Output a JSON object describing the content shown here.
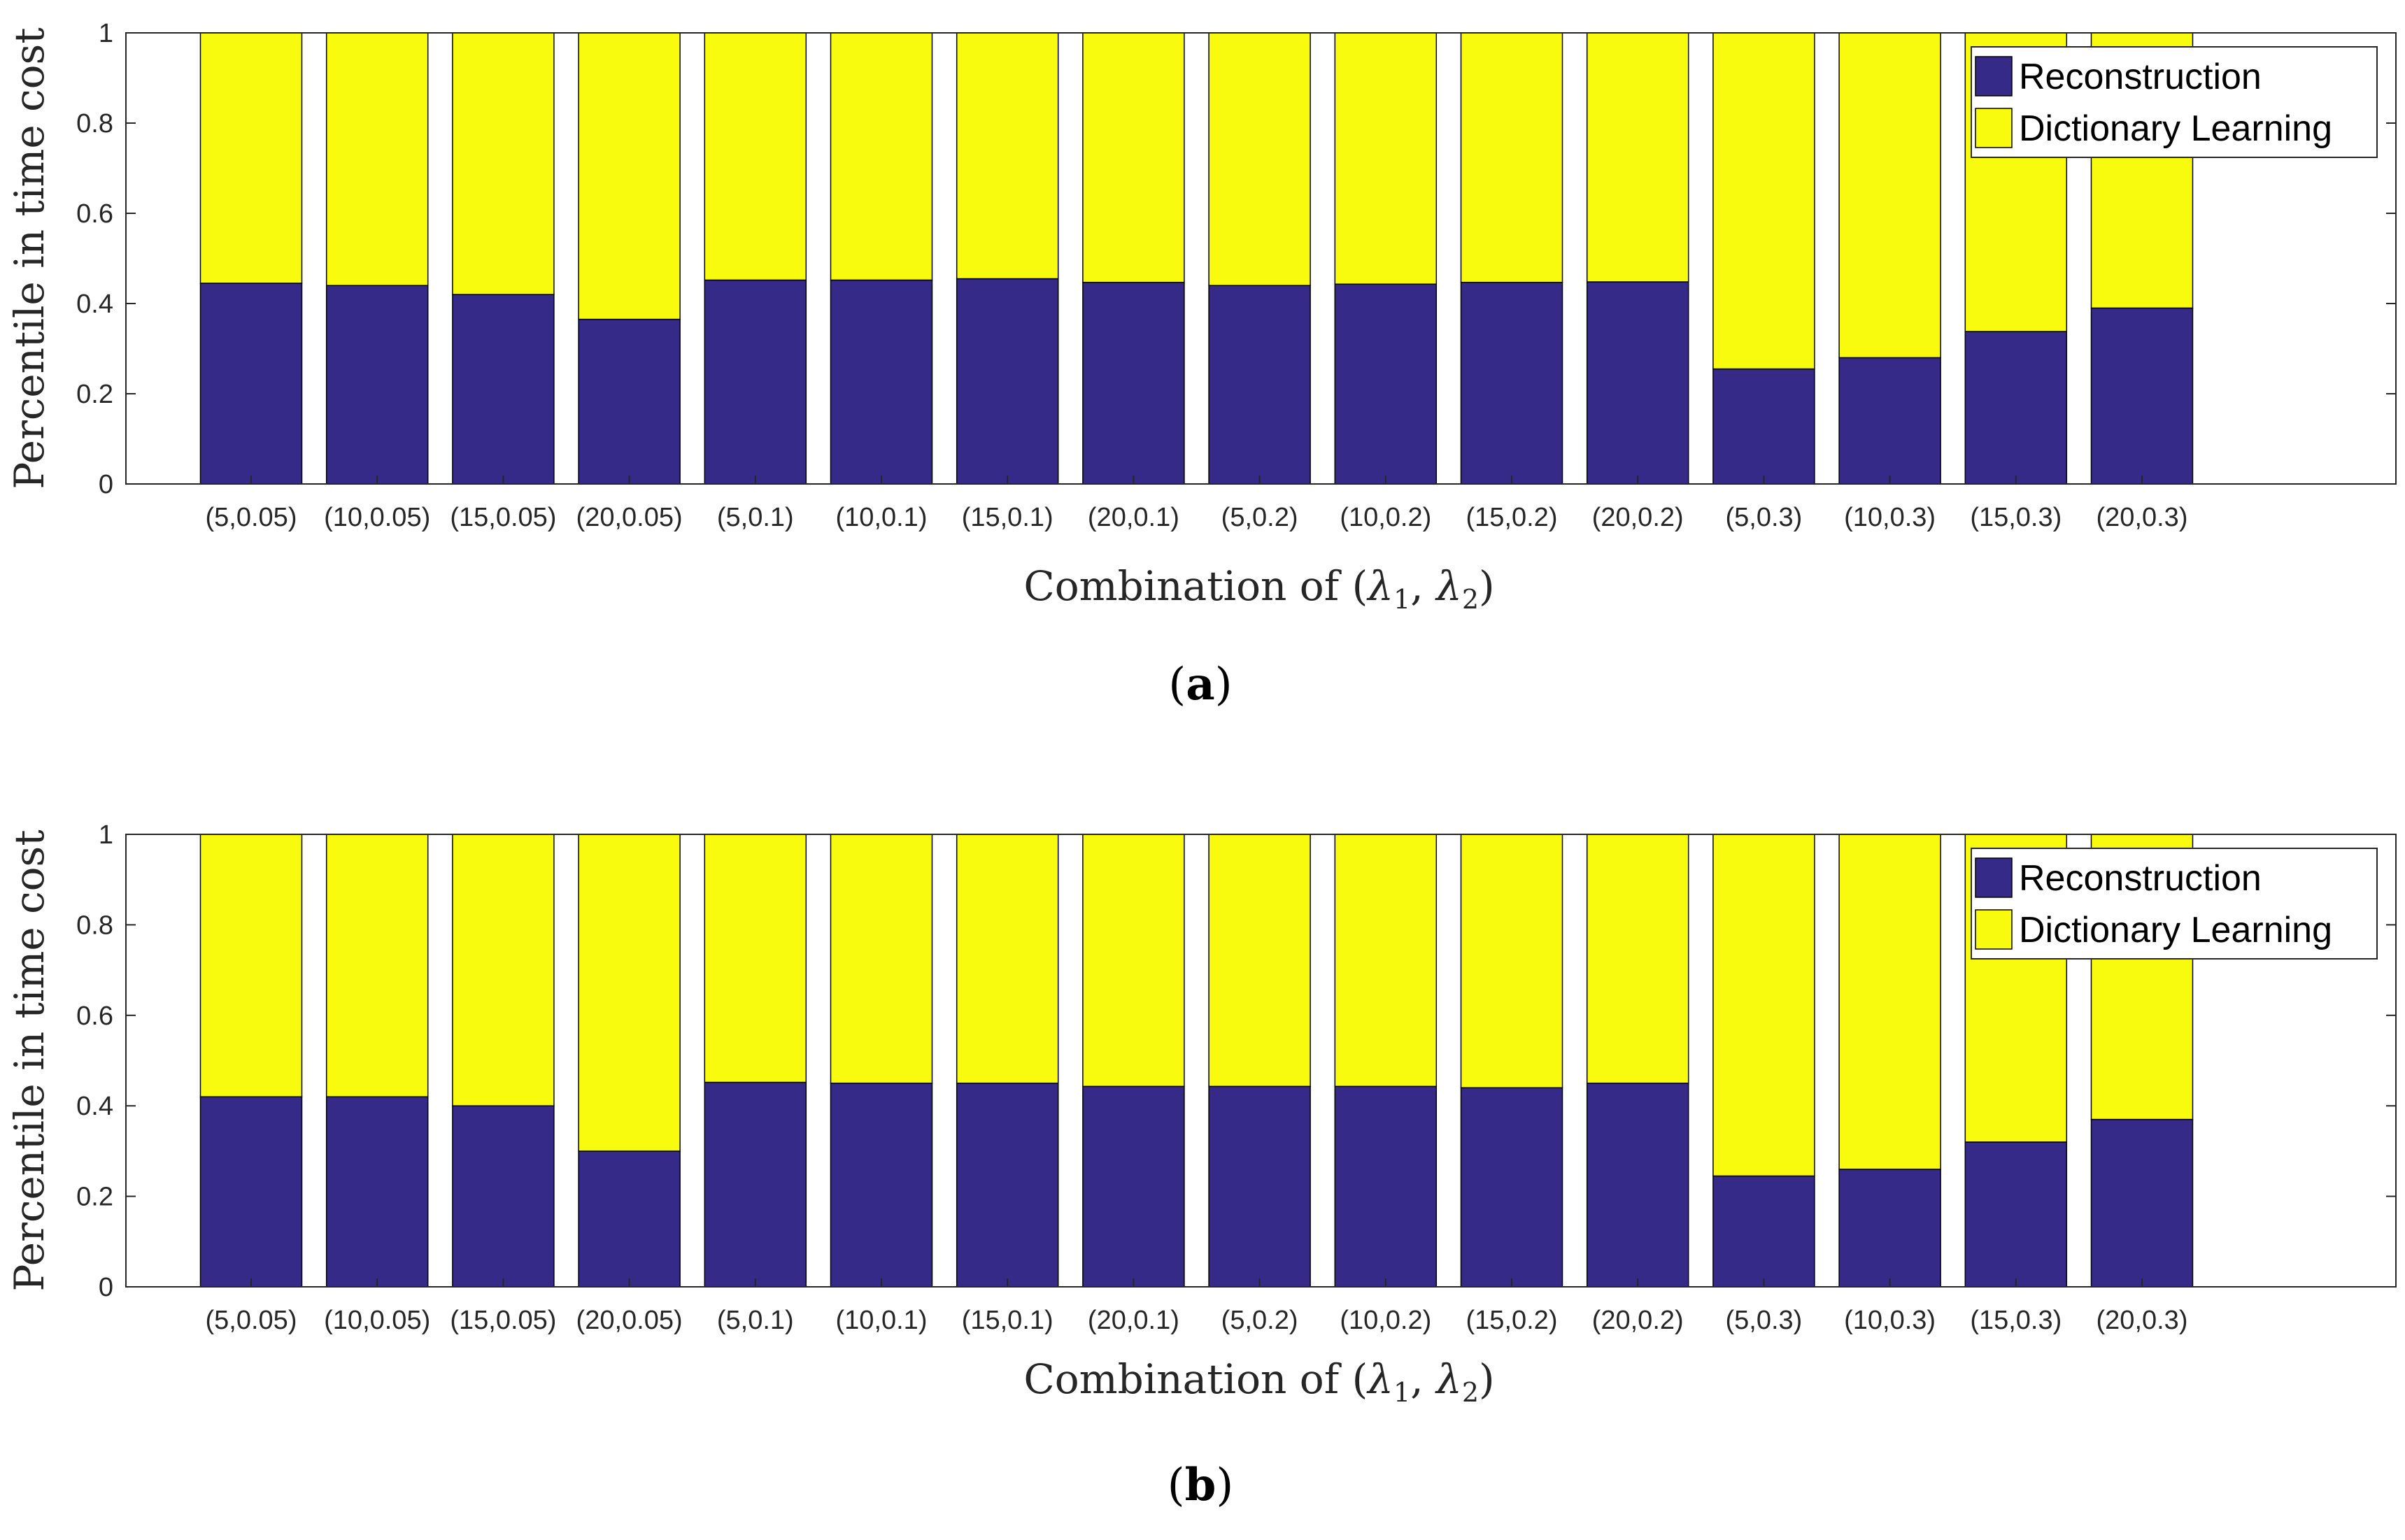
{
  "chart_data": [
    {
      "type": "bar",
      "stacked": true,
      "panel_label_open": "(",
      "panel_label_letter": "a",
      "panel_label_close": ")",
      "categories": [
        "(5,0.05)",
        "(10,0.05)",
        "(15,0.05)",
        "(20,0.05)",
        "(5,0.1)",
        "(10,0.1)",
        "(15,0.1)",
        "(20,0.1)",
        "(5,0.2)",
        "(10,0.2)",
        "(15,0.2)",
        "(20,0.2)",
        "(5,0.3)",
        "(10,0.3)",
        "(15,0.3)",
        "(20,0.3)"
      ],
      "series": [
        {
          "name": "Reconstruction",
          "color": "#352a87",
          "values": [
            0.445,
            0.44,
            0.42,
            0.365,
            0.452,
            0.452,
            0.455,
            0.447,
            0.44,
            0.443,
            0.447,
            0.448,
            0.255,
            0.28,
            0.338,
            0.39
          ]
        },
        {
          "name": "Dictionary Learning",
          "color": "#f9fb0e",
          "values": [
            0.555,
            0.56,
            0.58,
            0.635,
            0.548,
            0.548,
            0.545,
            0.553,
            0.56,
            0.557,
            0.553,
            0.552,
            0.745,
            0.72,
            0.662,
            0.61
          ]
        }
      ],
      "ylabel": "Percentile in time cost",
      "xlabel_prefix": "Combination of (",
      "xlabel_lambda1": "λ",
      "xlabel_sub1": "1",
      "xlabel_sep": ", ",
      "xlabel_lambda2": "λ",
      "xlabel_sub2": "2",
      "xlabel_suffix": ")",
      "ylim": [
        0,
        1
      ],
      "yticks": [
        "0",
        "0.2",
        "0.4",
        "0.6",
        "0.8",
        "1"
      ],
      "legend_position": "top-right"
    },
    {
      "type": "bar",
      "stacked": true,
      "panel_label_open": "(",
      "panel_label_letter": "b",
      "panel_label_close": ")",
      "categories": [
        "(5,0.05)",
        "(10,0.05)",
        "(15,0.05)",
        "(20,0.05)",
        "(5,0.1)",
        "(10,0.1)",
        "(15,0.1)",
        "(20,0.1)",
        "(5,0.2)",
        "(10,0.2)",
        "(15,0.2)",
        "(20,0.2)",
        "(5,0.3)",
        "(10,0.3)",
        "(15,0.3)",
        "(20,0.3)"
      ],
      "series": [
        {
          "name": "Reconstruction",
          "color": "#352a87",
          "values": [
            0.42,
            0.42,
            0.4,
            0.3,
            0.452,
            0.45,
            0.45,
            0.443,
            0.443,
            0.443,
            0.44,
            0.45,
            0.245,
            0.26,
            0.32,
            0.37
          ]
        },
        {
          "name": "Dictionary Learning",
          "color": "#f9fb0e",
          "values": [
            0.58,
            0.58,
            0.6,
            0.7,
            0.548,
            0.55,
            0.55,
            0.557,
            0.557,
            0.557,
            0.56,
            0.55,
            0.755,
            0.74,
            0.68,
            0.63
          ]
        }
      ],
      "ylabel": "Percentile in time cost",
      "xlabel_prefix": "Combination of (",
      "xlabel_lambda1": "λ",
      "xlabel_sub1": "1",
      "xlabel_sep": ", ",
      "xlabel_lambda2": "λ",
      "xlabel_sub2": "2",
      "xlabel_suffix": ")",
      "ylim": [
        0,
        1
      ],
      "yticks": [
        "0",
        "0.2",
        "0.4",
        "0.6",
        "0.8",
        "1"
      ],
      "legend_position": "top-right"
    }
  ]
}
